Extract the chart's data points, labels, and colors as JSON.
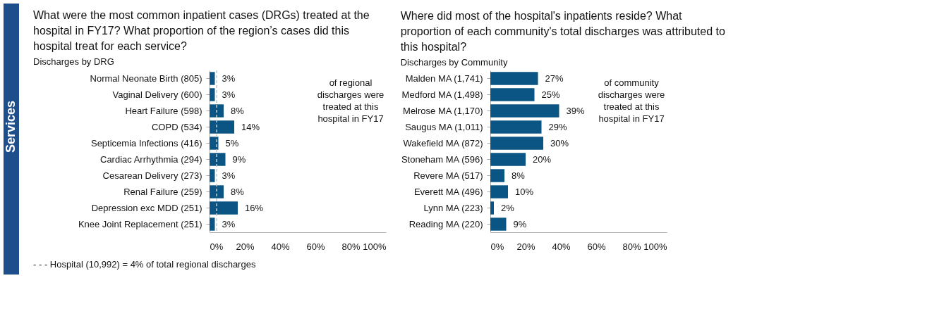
{
  "chart_data": [
    {
      "type": "bar",
      "orientation": "horizontal",
      "title": "What were the most common inpatient cases (DRGs) treated at the hospital in FY17? What proportion of the region’s cases did this hospital treat for each service?",
      "subtitle": "Discharges by DRG",
      "categories": [
        "Normal Neonate Birth (805)",
        "Vaginal Delivery (600)",
        "Heart Failure (598)",
        "COPD (534)",
        "Septicemia Infections (416)",
        "Cardiac Arrhythmia   (294)",
        "Cesarean Delivery (273)",
        "Renal Failure (259)",
        "Depression exc MDD (251)",
        "Knee Joint Replacement (251)"
      ],
      "series": [
        {
          "color": "#0b5585",
          "values": [
            3,
            3,
            8,
            14,
            5,
            9,
            3,
            8,
            16,
            3
          ]
        }
      ],
      "value_labels": [
        "3%",
        "3%",
        "8%",
        "14%",
        "5%",
        "9%",
        "3%",
        "8%",
        "16%",
        "3%"
      ],
      "xlim": [
        0,
        100
      ],
      "xticks": [
        {
          "value": 0,
          "label": "0%"
        },
        {
          "value": 20,
          "label": "20%"
        },
        {
          "value": 40,
          "label": "40%"
        },
        {
          "value": 60,
          "label": "60%"
        },
        {
          "value": 80,
          "label": "80%"
        },
        {
          "value": 100,
          "label": "100%"
        }
      ],
      "ref_lines": [
        {
          "axis": "x",
          "value": 4,
          "color": "#c8c8c8",
          "line_style": "dashed"
        }
      ],
      "annotations": [
        "of regional discharges were treated at this hospital in FY17",
        "- - -  Hospital  (10,992) = 4%  of total regional  discharges",
        "Services"
      ],
      "grid": false
    },
    {
      "type": "bar",
      "orientation": "horizontal",
      "title": "Where did most of the hospital's inpatients reside? What proportion of each community's total discharges was attributed to this hospital?",
      "subtitle": "Discharges by Community",
      "categories": [
        "Malden MA (1,741)",
        "Medford MA (1,498)",
        "Melrose MA (1,170)",
        "Saugus MA (1,011)",
        "Wakefield MA (872)",
        "Stoneham MA (596)",
        "Revere MA (517)",
        "Everett MA (496)",
        "Lynn MA (223)",
        "Reading MA (220)"
      ],
      "series": [
        {
          "color": "#0b5585",
          "values": [
            27,
            25,
            39,
            29,
            30,
            20,
            8,
            10,
            2,
            9
          ]
        }
      ],
      "value_labels": [
        "27%",
        "25%",
        "39%",
        "29%",
        "30%",
        "20%",
        "8%",
        "10%",
        "2%",
        "9%"
      ],
      "xlim": [
        0,
        100
      ],
      "xticks": [
        {
          "value": 0,
          "label": "0%"
        },
        {
          "value": 20,
          "label": "20%"
        },
        {
          "value": 40,
          "label": "40%"
        },
        {
          "value": 60,
          "label": "60%"
        },
        {
          "value": 80,
          "label": "80%"
        },
        {
          "value": 100,
          "label": "100%"
        }
      ],
      "annotations": [
        "of community discharges were treated at this hospital in FY17"
      ],
      "grid": false
    }
  ]
}
